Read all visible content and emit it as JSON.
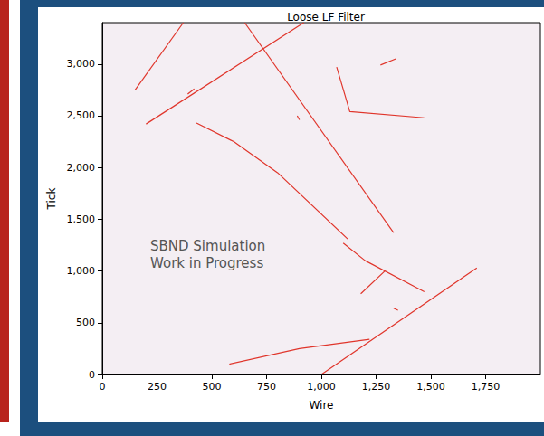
{
  "chart_data": {
    "type": "line",
    "title": "Loose LF Filter",
    "xlabel": "Wire",
    "ylabel": "Tick",
    "annotation": [
      "SBND Simulation",
      "Work in Progress"
    ],
    "color": "#e0352b",
    "grid": false,
    "xlim": [
      0,
      2000
    ],
    "ylim": [
      0,
      3400
    ],
    "xticks": [
      0,
      250,
      500,
      750,
      1000,
      1250,
      1500,
      1750
    ],
    "yticks": [
      0,
      500,
      1000,
      1500,
      2000,
      2500,
      3000
    ],
    "series": [
      {
        "x": [
          150,
          370
        ],
        "values": [
          2750,
          3400
        ]
      },
      {
        "x": [
          200,
          920
        ],
        "values": [
          2420,
          3400
        ]
      },
      {
        "x": [
          650,
          1330
        ],
        "values": [
          3400,
          1370
        ]
      },
      {
        "x": [
          1070,
          1130,
          1470
        ],
        "values": [
          2970,
          2540,
          2480
        ]
      },
      {
        "x": [
          1270,
          1340
        ],
        "values": [
          2990,
          3050
        ]
      },
      {
        "x": [
          430,
          600,
          800,
          1120
        ],
        "values": [
          2430,
          2250,
          1950,
          1310
        ]
      },
      {
        "x": [
          1100,
          1200,
          1470
        ],
        "values": [
          1270,
          1100,
          800
        ]
      },
      {
        "x": [
          1180,
          1290
        ],
        "values": [
          780,
          1000
        ]
      },
      {
        "x": [
          580,
          900,
          1220
        ],
        "values": [
          100,
          250,
          340
        ]
      },
      {
        "x": [
          1000,
          1710
        ],
        "values": [
          0,
          1030
        ]
      },
      {
        "x": [
          390,
          420
        ],
        "values": [
          2710,
          2760
        ]
      },
      {
        "x": [
          890,
          900
        ],
        "values": [
          2500,
          2460
        ]
      },
      {
        "x": [
          1330,
          1350
        ],
        "values": [
          640,
          620
        ]
      }
    ]
  }
}
